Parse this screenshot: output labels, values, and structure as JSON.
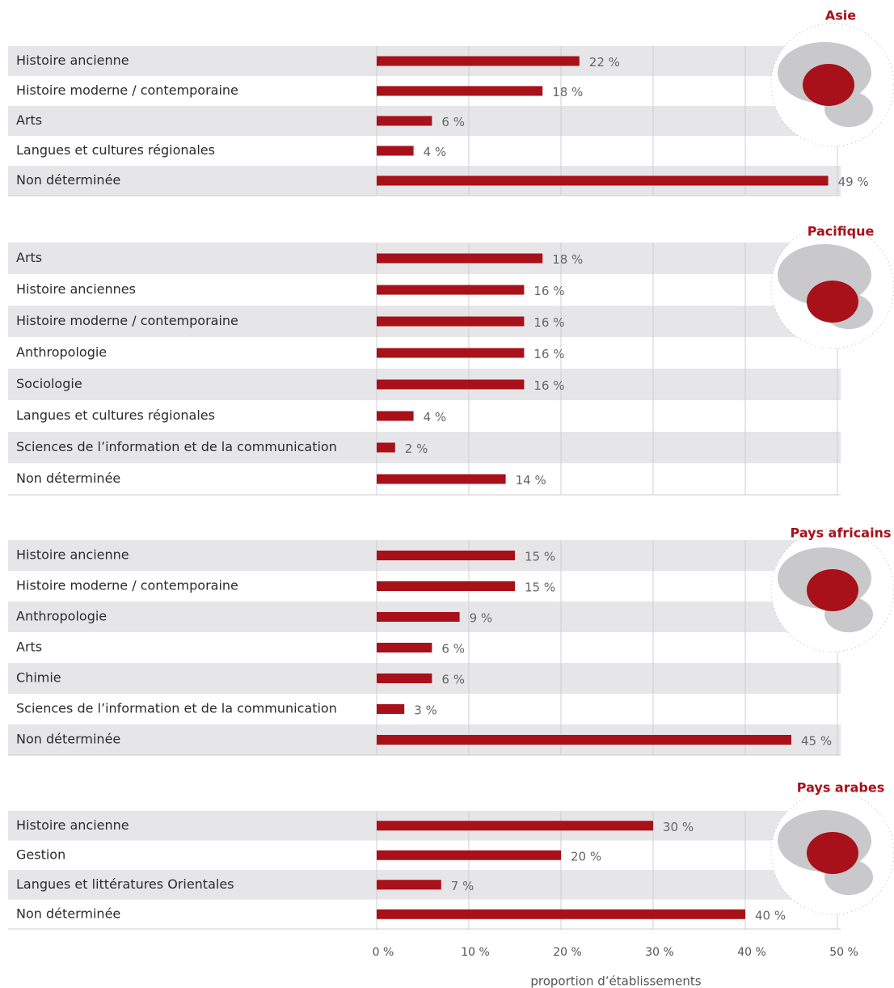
{
  "axis": {
    "xlim": [
      0,
      50
    ],
    "xticks": [
      {
        "value": 0,
        "label": "0 %"
      },
      {
        "value": 10,
        "label": "10 %"
      },
      {
        "value": 20,
        "label": "20 %"
      },
      {
        "value": 30,
        "label": "30 %"
      },
      {
        "value": 40,
        "label": "40 %"
      },
      {
        "value": 50,
        "label": "50 %"
      }
    ],
    "xlabel": "proportion d’établissements",
    "grid": true
  },
  "chart_data": [
    {
      "type": "bar",
      "orientation": "horizontal",
      "title": "Asie",
      "color": "#a8101a",
      "categories": [
        "Histoire ancienne",
        "Histoire moderne / contemporaine",
        "Arts",
        "Langues et cultures régionales",
        "Non déterminée"
      ],
      "values": [
        22,
        18,
        6,
        4,
        49
      ],
      "value_labels": [
        "22 %",
        "18 %",
        "6 %",
        "4 %",
        "49 %"
      ]
    },
    {
      "type": "bar",
      "orientation": "horizontal",
      "title": "Pacifique",
      "color": "#a8101a",
      "categories": [
        "Arts",
        "Histoire anciennes",
        "Histoire moderne / contemporaine",
        "Anthropologie",
        "Sociologie",
        "Langues et cultures régionales",
        "Sciences de l’information et de la communication",
        "Non déterminée"
      ],
      "values": [
        18,
        16,
        16,
        16,
        16,
        4,
        2,
        14
      ],
      "value_labels": [
        "18 %",
        "16 %",
        "16 %",
        "16 %",
        "16 %",
        "4 %",
        "2 %",
        "14 %"
      ]
    },
    {
      "type": "bar",
      "orientation": "horizontal",
      "title": "Pays africains",
      "color": "#a8101a",
      "categories": [
        "Histoire ancienne",
        "Histoire moderne / contemporaine",
        "Anthropologie",
        "Arts",
        "Chimie",
        "Sciences de l’information et de la communication",
        "Non déterminée"
      ],
      "values": [
        15,
        15,
        9,
        6,
        6,
        3,
        45
      ],
      "value_labels": [
        "15 %",
        "15 %",
        "9 %",
        "6 %",
        "6 %",
        "3 %",
        "45 %"
      ]
    },
    {
      "type": "bar",
      "orientation": "horizontal",
      "title": "Pays arabes",
      "color": "#a8101a",
      "categories": [
        "Histoire ancienne",
        "Gestion",
        "Langues et littératures Orientales",
        "Non déterminée"
      ],
      "values": [
        30,
        20,
        7,
        40
      ],
      "value_labels": [
        "30 %",
        "20 %",
        "7 %",
        "40 %"
      ]
    }
  ]
}
